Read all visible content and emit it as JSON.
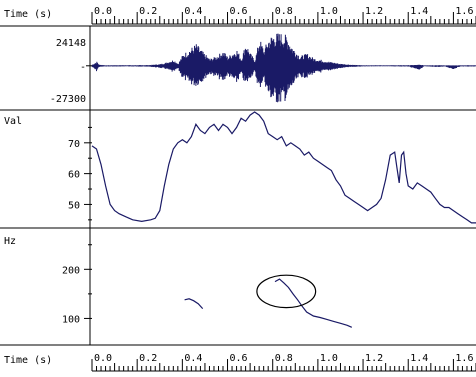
{
  "time_axis": {
    "label": "Time (s)",
    "ticks": [
      "0.0",
      "0.2",
      "0.4",
      "0.6",
      "0.8",
      "1.0",
      "1.2",
      "1.4",
      "1.6"
    ],
    "tick_values": [
      0.0,
      0.2,
      0.4,
      0.6,
      0.8,
      1.0,
      1.2,
      1.4,
      1.6
    ],
    "range": [
      0.0,
      1.7
    ]
  },
  "waveform": {
    "max_label": "24148",
    "min_label": "-27300",
    "zero_label": "-",
    "range": [
      -27300,
      24148
    ],
    "color": "#1a1a66",
    "envelope": [
      [
        0.0,
        -800,
        800
      ],
      [
        0.02,
        -4000,
        3000
      ],
      [
        0.03,
        -900,
        900
      ],
      [
        0.06,
        -400,
        300
      ],
      [
        0.1,
        -500,
        400
      ],
      [
        0.15,
        -400,
        400
      ],
      [
        0.2,
        -500,
        400
      ],
      [
        0.25,
        -600,
        500
      ],
      [
        0.3,
        -1500,
        1200
      ],
      [
        0.33,
        -2500,
        2500
      ],
      [
        0.36,
        -5000,
        4500
      ],
      [
        0.38,
        -2000,
        1500
      ],
      [
        0.4,
        -9000,
        8000
      ],
      [
        0.43,
        -13000,
        12000
      ],
      [
        0.46,
        -15000,
        16000
      ],
      [
        0.49,
        -11000,
        10000
      ],
      [
        0.52,
        -6000,
        5000
      ],
      [
        0.55,
        -8000,
        7000
      ],
      [
        0.58,
        -12000,
        11000
      ],
      [
        0.6,
        -7000,
        6500
      ],
      [
        0.62,
        -10000,
        9500
      ],
      [
        0.64,
        -13000,
        12000
      ],
      [
        0.66,
        -6000,
        5000
      ],
      [
        0.68,
        -15000,
        17000
      ],
      [
        0.7,
        -9000,
        9000
      ],
      [
        0.72,
        -5000,
        4000
      ],
      [
        0.74,
        -18000,
        20000
      ],
      [
        0.76,
        -10000,
        12000
      ],
      [
        0.78,
        -22000,
        20000
      ],
      [
        0.8,
        -26000,
        23000
      ],
      [
        0.83,
        -27300,
        24148
      ],
      [
        0.86,
        -25000,
        22000
      ],
      [
        0.89,
        -15000,
        13000
      ],
      [
        0.92,
        -8000,
        7000
      ],
      [
        0.95,
        -9000,
        9000
      ],
      [
        0.98,
        -6000,
        5500
      ],
      [
        1.01,
        -5000,
        4500
      ],
      [
        1.05,
        -3500,
        3000
      ],
      [
        1.1,
        -1800,
        1500
      ],
      [
        1.15,
        -800,
        700
      ],
      [
        1.2,
        -400,
        300
      ],
      [
        1.3,
        -300,
        300
      ],
      [
        1.4,
        -500,
        400
      ],
      [
        1.45,
        -3000,
        800
      ],
      [
        1.47,
        -300,
        300
      ],
      [
        1.52,
        -1000,
        400
      ],
      [
        1.56,
        -500,
        300
      ],
      [
        1.6,
        -2500,
        300
      ],
      [
        1.63,
        -400,
        300
      ],
      [
        1.7,
        -500,
        400
      ]
    ]
  },
  "value_track": {
    "label": "Val",
    "ticks": [
      "70",
      "60",
      "50"
    ],
    "tick_values": [
      70,
      60,
      50
    ],
    "range": [
      43,
      80
    ],
    "color": "#1a1a66",
    "points": [
      [
        0.0,
        69
      ],
      [
        0.02,
        68
      ],
      [
        0.04,
        63
      ],
      [
        0.06,
        56
      ],
      [
        0.08,
        50
      ],
      [
        0.1,
        48
      ],
      [
        0.12,
        47
      ],
      [
        0.15,
        46
      ],
      [
        0.18,
        45
      ],
      [
        0.22,
        44.5
      ],
      [
        0.26,
        45
      ],
      [
        0.28,
        45.5
      ],
      [
        0.3,
        48
      ],
      [
        0.32,
        56
      ],
      [
        0.34,
        63
      ],
      [
        0.36,
        68
      ],
      [
        0.38,
        70
      ],
      [
        0.4,
        71
      ],
      [
        0.42,
        70
      ],
      [
        0.44,
        72
      ],
      [
        0.46,
        76
      ],
      [
        0.48,
        74
      ],
      [
        0.5,
        73
      ],
      [
        0.52,
        75
      ],
      [
        0.54,
        76
      ],
      [
        0.56,
        74
      ],
      [
        0.58,
        76
      ],
      [
        0.6,
        75
      ],
      [
        0.62,
        73
      ],
      [
        0.64,
        75
      ],
      [
        0.66,
        78
      ],
      [
        0.68,
        77
      ],
      [
        0.7,
        79
      ],
      [
        0.72,
        80
      ],
      [
        0.74,
        79
      ],
      [
        0.76,
        77
      ],
      [
        0.78,
        73
      ],
      [
        0.8,
        72
      ],
      [
        0.82,
        71
      ],
      [
        0.84,
        72
      ],
      [
        0.86,
        69
      ],
      [
        0.88,
        70
      ],
      [
        0.9,
        69
      ],
      [
        0.92,
        68
      ],
      [
        0.94,
        66
      ],
      [
        0.96,
        67
      ],
      [
        0.98,
        65
      ],
      [
        1.0,
        64
      ],
      [
        1.02,
        63
      ],
      [
        1.04,
        62
      ],
      [
        1.06,
        61
      ],
      [
        1.08,
        58
      ],
      [
        1.1,
        56
      ],
      [
        1.12,
        53
      ],
      [
        1.14,
        52
      ],
      [
        1.16,
        51
      ],
      [
        1.18,
        50
      ],
      [
        1.2,
        49
      ],
      [
        1.22,
        48
      ],
      [
        1.24,
        49
      ],
      [
        1.26,
        50
      ],
      [
        1.28,
        52
      ],
      [
        1.3,
        58
      ],
      [
        1.32,
        66
      ],
      [
        1.34,
        67
      ],
      [
        1.35,
        62
      ],
      [
        1.36,
        57
      ],
      [
        1.37,
        66
      ],
      [
        1.38,
        67
      ],
      [
        1.39,
        60
      ],
      [
        1.4,
        56
      ],
      [
        1.42,
        55
      ],
      [
        1.44,
        57
      ],
      [
        1.46,
        56
      ],
      [
        1.48,
        55
      ],
      [
        1.5,
        54
      ],
      [
        1.52,
        52
      ],
      [
        1.54,
        50
      ],
      [
        1.56,
        49
      ],
      [
        1.58,
        49
      ],
      [
        1.6,
        48
      ],
      [
        1.62,
        47
      ],
      [
        1.64,
        46
      ],
      [
        1.66,
        45
      ],
      [
        1.68,
        44
      ],
      [
        1.7,
        44
      ]
    ]
  },
  "pitch_track": {
    "label": "Hz",
    "ticks": [
      "200",
      "100"
    ],
    "tick_values": [
      200,
      100
    ],
    "range": [
      50,
      280
    ],
    "color": "#1a1a66",
    "segments": [
      [
        [
          0.41,
          138
        ],
        [
          0.43,
          140
        ],
        [
          0.45,
          136
        ],
        [
          0.47,
          130
        ],
        [
          0.49,
          120
        ]
      ],
      [
        [
          0.81,
          175
        ],
        [
          0.83,
          180
        ],
        [
          0.85,
          172
        ],
        [
          0.87,
          163
        ],
        [
          0.89,
          150
        ],
        [
          0.91,
          138
        ],
        [
          0.93,
          125
        ],
        [
          0.95,
          113
        ],
        [
          0.98,
          105
        ],
        [
          1.01,
          102
        ],
        [
          1.04,
          98
        ],
        [
          1.07,
          94
        ],
        [
          1.1,
          90
        ],
        [
          1.13,
          86
        ],
        [
          1.15,
          82
        ]
      ]
    ],
    "annotation": {
      "type": "ellipse",
      "cx": 0.86,
      "cy": 155,
      "rx_time": 0.13,
      "ry_hz": 33
    }
  }
}
